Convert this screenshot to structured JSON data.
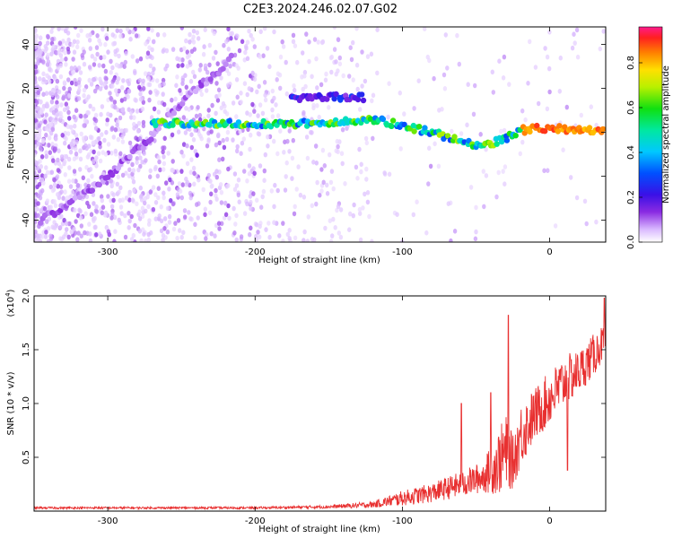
{
  "title": "C2E3.2024.246.02.07.G02",
  "chart_data": [
    {
      "type": "heatmap",
      "name": "spectrogram",
      "xlabel": "Height of straight line (km)",
      "ylabel": "Frequency (Hz)",
      "xlim": [
        -350,
        38
      ],
      "ylim": [
        -50,
        48
      ],
      "xticks": [
        -300,
        -200,
        -100,
        0
      ],
      "yticks": [
        -40,
        -20,
        0,
        20,
        40
      ],
      "colorbar": {
        "label": "Normalized spectral amplitude",
        "range": [
          0,
          0.96
        ],
        "ticks": [
          0.0,
          0.2,
          0.4,
          0.6,
          0.8
        ]
      },
      "features": [
        {
          "name": "rising track",
          "points": [
            [
              -345,
              -40
            ],
            [
              -310,
              -25
            ],
            [
              -290,
              -14
            ],
            [
              -275,
              -5
            ],
            [
              -265,
              2
            ],
            [
              -255,
              10
            ],
            [
              -240,
              20
            ],
            [
              -225,
              28
            ],
            [
              -215,
              35
            ]
          ],
          "amplitude": 0.12
        },
        {
          "name": "main band",
          "points": [
            [
              -270,
              4
            ],
            [
              -200,
              4
            ],
            [
              -150,
              4
            ],
            [
              -120,
              6
            ],
            [
              -100,
              3
            ],
            [
              -80,
              0
            ],
            [
              -60,
              -4
            ],
            [
              -45,
              -6
            ],
            [
              -30,
              -3
            ],
            [
              -20,
              1
            ],
            [
              0,
              2
            ],
            [
              38,
              0
            ]
          ],
          "amplitude": 0.6
        },
        {
          "name": "upper band",
          "points": [
            [
              -175,
              16
            ],
            [
              -150,
              16
            ],
            [
              -125,
              16
            ]
          ],
          "amplitude": 0.25
        }
      ]
    },
    {
      "type": "line",
      "name": "snr",
      "xlabel": "Height of straight line (km)",
      "ylabel": "SNR (10 * v/v)",
      "multiplier": "(x10",
      "multiplier_exp": "4",
      "xlim": [
        -350,
        38
      ],
      "ylim": [
        0,
        2.0
      ],
      "xticks": [
        -300,
        -200,
        -100,
        0
      ],
      "yticks": [
        0.5,
        1.0,
        1.5,
        2.0
      ],
      "color": "#e83030",
      "envelope": {
        "x": [
          -350,
          -200,
          -150,
          -120,
          -110,
          -100,
          -80,
          -60,
          -45,
          -35,
          -30,
          -25,
          -20,
          -10,
          0,
          10,
          20,
          30,
          38
        ],
        "mean": [
          0.03,
          0.03,
          0.04,
          0.06,
          0.09,
          0.12,
          0.17,
          0.25,
          0.32,
          0.45,
          0.55,
          0.45,
          0.7,
          0.9,
          1.05,
          1.2,
          1.3,
          1.45,
          1.6
        ],
        "noise": [
          0.01,
          0.01,
          0.015,
          0.03,
          0.05,
          0.07,
          0.09,
          0.12,
          0.15,
          0.3,
          0.35,
          0.25,
          0.3,
          0.25,
          0.25,
          0.25,
          0.2,
          0.2,
          0.15
        ]
      },
      "peaks": [
        [
          -28,
          1.82
        ],
        [
          -40,
          1.1
        ],
        [
          -60,
          1.0
        ],
        [
          37,
          1.98
        ],
        [
          12,
          0.38
        ]
      ]
    }
  ]
}
